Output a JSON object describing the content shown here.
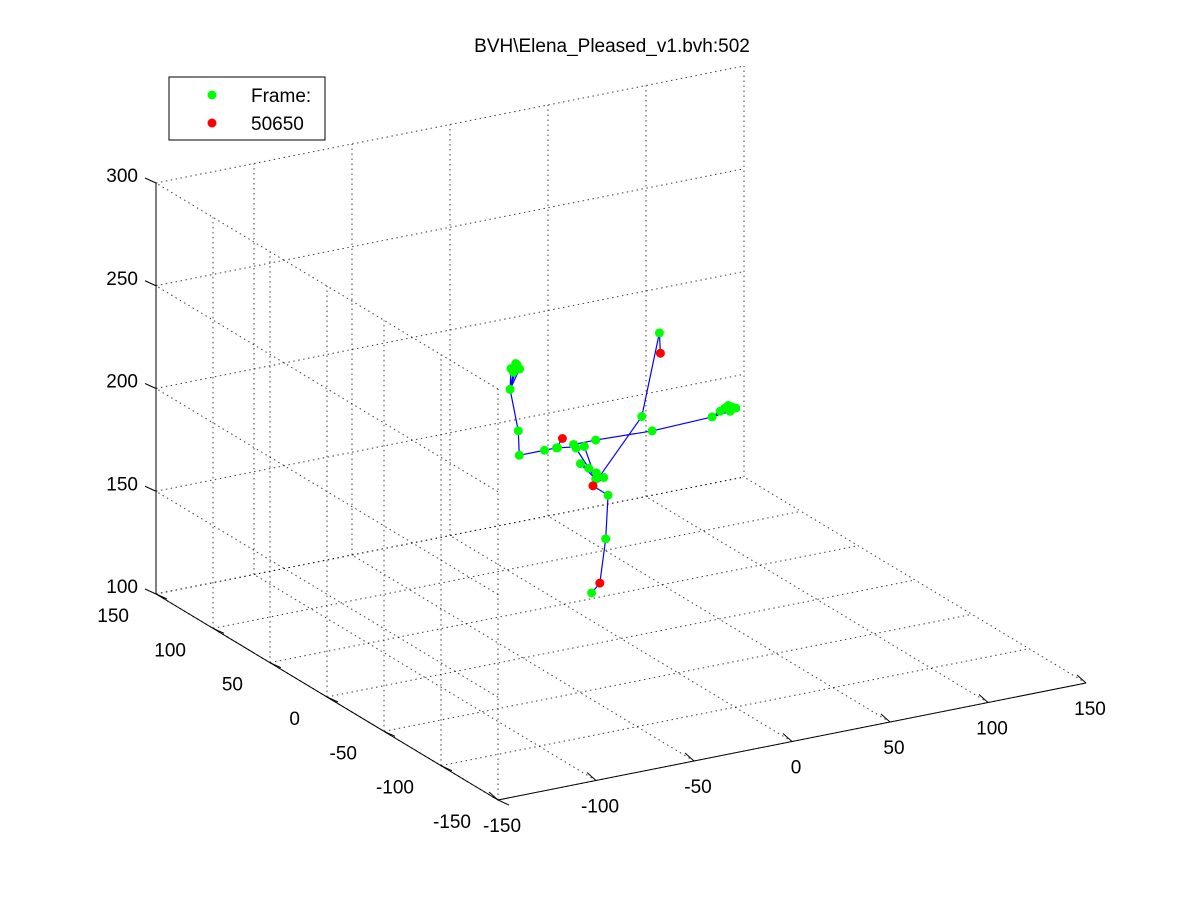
{
  "title": "BVH\\Elena_Pleased_v1.bvh:502",
  "legend": {
    "entries": [
      {
        "label": "Frame:",
        "color": "#00ff00"
      },
      {
        "label": "50650",
        "color": "#ff0000"
      }
    ]
  },
  "colors": {
    "joint": "#00ff00",
    "end_site": "#ff0000",
    "bone": "#0000ff",
    "axes": "#000000",
    "background": "#ffffff"
  },
  "chart_data": {
    "type": "scatter",
    "projection": "3d",
    "title": "BVH\\Elena_Pleased_v1.bvh:502",
    "xlabel": "",
    "ylabel": "",
    "zlabel": "",
    "xlim": [
      -150,
      150
    ],
    "ylim": [
      -150,
      150
    ],
    "zlim": [
      100,
      300
    ],
    "x_ticks": [
      "-150",
      "-100",
      "-50",
      "0",
      "50",
      "100",
      "150"
    ],
    "y_ticks": [
      "-150",
      "-100",
      "-50",
      "0",
      "50",
      "100",
      "150"
    ],
    "z_ticks": [
      "100",
      "150",
      "200",
      "250",
      "300"
    ],
    "grid": true,
    "legend_position": "top-left",
    "series": [
      {
        "name": "Frame:",
        "color": "#00ff00",
        "marker": "circle",
        "points": [
          [
            -8.8,
            0,
            180
          ],
          [
            -12.6,
            0,
            183
          ],
          [
            -16.5,
            0,
            186
          ],
          [
            -20.7,
            0,
            189
          ],
          [
            -22.9,
            0,
            197
          ],
          [
            -32.9,
            0,
            199
          ],
          [
            -39.0,
            0,
            199
          ],
          [
            -51.9,
            0,
            199
          ],
          [
            -52.4,
            0,
            211
          ],
          [
            -56.6,
            0,
            232
          ],
          [
            -54.9,
            0,
            240
          ],
          [
            -54.1,
            0,
            242
          ],
          [
            -56.1,
            0,
            242
          ],
          [
            -53.7,
            0,
            244
          ],
          [
            -52.9,
            0,
            243
          ],
          [
            -51.7,
            0,
            241
          ],
          [
            -24.2,
            0,
            199
          ],
          [
            -12.9,
            0,
            199
          ],
          [
            15.9,
            0,
            198
          ],
          [
            46.5,
            0,
            199
          ],
          [
            50.6,
            0,
            201
          ],
          [
            52.9,
            0,
            202
          ],
          [
            54.7,
            0,
            203
          ],
          [
            56.5,
            0,
            202
          ],
          [
            58.6,
            0,
            201
          ],
          [
            55.7,
            0,
            200
          ],
          [
            -18.7,
            0,
            197
          ],
          [
            -32.4,
            0,
            199
          ],
          [
            -6.6,
            0,
            171
          ],
          [
            -7.8,
            0,
            150
          ],
          [
            -15.0,
            0,
            125
          ],
          [
            -12.9,
            0,
            180
          ],
          [
            10.6,
            0,
            206
          ],
          [
            19.6,
            0,
            245
          ]
        ]
      },
      {
        "name": "50650",
        "color": "#ff0000",
        "marker": "circle",
        "points": [
          [
            -10.8,
            0,
            129
          ],
          [
            -29.9,
            0,
            203
          ],
          [
            20.1,
            0,
            235
          ],
          [
            -14.3,
            0,
            177
          ]
        ]
      }
    ]
  }
}
